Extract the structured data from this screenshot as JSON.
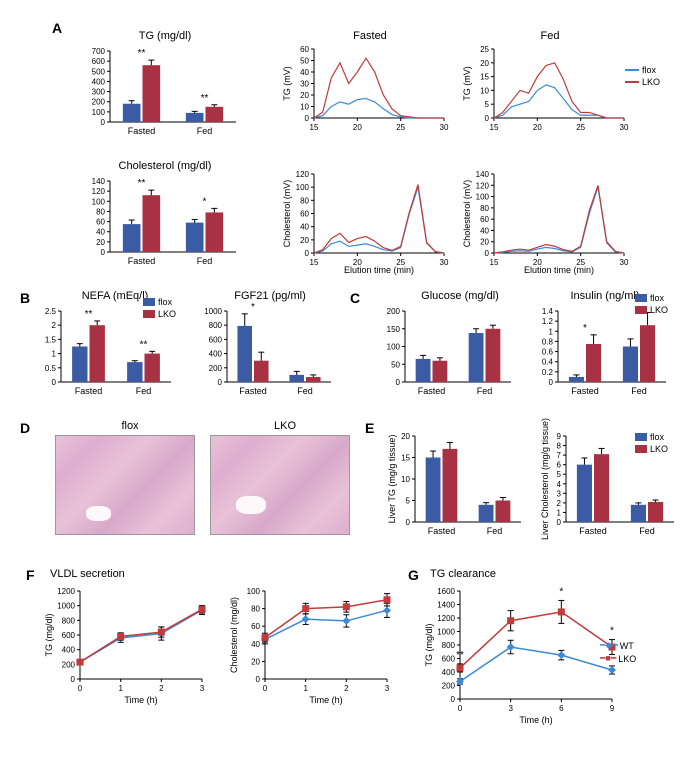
{
  "colors": {
    "flox": "#3b5ba5",
    "lko": "#a83244",
    "flox_line": "#3b8bd6",
    "lko_line": "#c23a3a",
    "wt_line": "#3b8bd6",
    "axis": "#000000",
    "bg": "#ffffff"
  },
  "legend": {
    "flox": "flox",
    "lko": "LKO",
    "wt": "WT"
  },
  "panels": {
    "A": {
      "label": "A",
      "tg_bar": {
        "title": "TG (mg/dl)",
        "categories": [
          "Fasted",
          "Fed"
        ],
        "flox": [
          180,
          90
        ],
        "lko": [
          560,
          150
        ],
        "flox_err": [
          30,
          15
        ],
        "lko_err": [
          50,
          20
        ],
        "ylim": [
          0,
          700
        ],
        "ytick": 100,
        "sig": [
          "**",
          "**"
        ]
      },
      "chol_bar": {
        "title": "Cholesterol (mg/dl)",
        "categories": [
          "Fasted",
          "Fed"
        ],
        "flox": [
          55,
          58
        ],
        "lko": [
          112,
          78
        ],
        "flox_err": [
          8,
          6
        ],
        "lko_err": [
          10,
          8
        ],
        "ylim": [
          0,
          140
        ],
        "ytick": 20,
        "sig": [
          "**",
          "*"
        ]
      },
      "tg_fasted_line": {
        "title": "Fasted",
        "ylabel": "TG (mV)",
        "xlim": [
          15,
          30
        ],
        "xticks": [
          15,
          20,
          25,
          30
        ],
        "ylim": [
          0,
          60
        ],
        "yticks": [
          0,
          10,
          20,
          30,
          40,
          50,
          60
        ],
        "flox": [
          [
            15,
            0
          ],
          [
            16,
            2
          ],
          [
            17,
            10
          ],
          [
            18,
            14
          ],
          [
            19,
            12
          ],
          [
            20,
            16
          ],
          [
            21,
            17
          ],
          [
            22,
            14
          ],
          [
            23,
            8
          ],
          [
            24,
            3
          ],
          [
            25,
            1
          ],
          [
            26,
            0
          ],
          [
            27,
            0
          ],
          [
            28,
            0
          ],
          [
            29,
            0
          ],
          [
            30,
            0
          ]
        ],
        "lko": [
          [
            15,
            0
          ],
          [
            16,
            5
          ],
          [
            17,
            35
          ],
          [
            18,
            48
          ],
          [
            19,
            30
          ],
          [
            20,
            40
          ],
          [
            21,
            52
          ],
          [
            22,
            40
          ],
          [
            23,
            20
          ],
          [
            24,
            8
          ],
          [
            25,
            2
          ],
          [
            26,
            1
          ],
          [
            27,
            0
          ],
          [
            28,
            0
          ],
          [
            29,
            0
          ],
          [
            30,
            0
          ]
        ]
      },
      "tg_fed_line": {
        "title": "Fed",
        "ylabel": "TG (mV)",
        "xlim": [
          15,
          30
        ],
        "xticks": [
          15,
          20,
          25,
          30
        ],
        "ylim": [
          0,
          25
        ],
        "yticks": [
          0,
          5,
          10,
          15,
          20,
          25
        ],
        "flox": [
          [
            15,
            0
          ],
          [
            16,
            1
          ],
          [
            17,
            4
          ],
          [
            18,
            5
          ],
          [
            19,
            6
          ],
          [
            20,
            10
          ],
          [
            21,
            12
          ],
          [
            22,
            11
          ],
          [
            23,
            7
          ],
          [
            24,
            3
          ],
          [
            25,
            1
          ],
          [
            26,
            1
          ],
          [
            27,
            1
          ],
          [
            28,
            0
          ],
          [
            29,
            0
          ],
          [
            30,
            0
          ]
        ],
        "lko": [
          [
            15,
            0
          ],
          [
            16,
            2
          ],
          [
            17,
            6
          ],
          [
            18,
            10
          ],
          [
            19,
            9
          ],
          [
            20,
            15
          ],
          [
            21,
            19
          ],
          [
            22,
            20
          ],
          [
            23,
            14
          ],
          [
            24,
            6
          ],
          [
            25,
            2
          ],
          [
            26,
            2
          ],
          [
            27,
            1
          ],
          [
            28,
            0
          ],
          [
            29,
            0
          ],
          [
            30,
            0
          ]
        ]
      },
      "chol_fasted_line": {
        "ylabel": "Cholesterol (mV)",
        "xlabel": "Elution time (min)",
        "xlim": [
          15,
          30
        ],
        "xticks": [
          15,
          20,
          25,
          30
        ],
        "ylim": [
          0,
          120
        ],
        "yticks": [
          0,
          20,
          40,
          60,
          80,
          100,
          120
        ],
        "flox": [
          [
            15,
            0
          ],
          [
            16,
            3
          ],
          [
            17,
            14
          ],
          [
            18,
            18
          ],
          [
            19,
            10
          ],
          [
            20,
            12
          ],
          [
            21,
            14
          ],
          [
            22,
            10
          ],
          [
            23,
            5
          ],
          [
            24,
            3
          ],
          [
            25,
            8
          ],
          [
            26,
            60
          ],
          [
            27,
            100
          ],
          [
            28,
            15
          ],
          [
            29,
            2
          ],
          [
            30,
            0
          ]
        ],
        "lko": [
          [
            15,
            0
          ],
          [
            16,
            5
          ],
          [
            17,
            22
          ],
          [
            18,
            30
          ],
          [
            19,
            16
          ],
          [
            20,
            22
          ],
          [
            21,
            25
          ],
          [
            22,
            18
          ],
          [
            23,
            8
          ],
          [
            24,
            4
          ],
          [
            25,
            10
          ],
          [
            26,
            62
          ],
          [
            27,
            104
          ],
          [
            28,
            16
          ],
          [
            29,
            2
          ],
          [
            30,
            0
          ]
        ]
      },
      "chol_fed_line": {
        "ylabel": "Cholesterol (mV)",
        "xlabel": "Elution time (min)",
        "xlim": [
          15,
          30
        ],
        "xticks": [
          15,
          20,
          25,
          30
        ],
        "ylim": [
          0,
          140
        ],
        "yticks": [
          0,
          20,
          40,
          60,
          80,
          100,
          120,
          140
        ],
        "flox": [
          [
            15,
            0
          ],
          [
            16,
            1
          ],
          [
            17,
            3
          ],
          [
            18,
            4
          ],
          [
            19,
            3
          ],
          [
            20,
            7
          ],
          [
            21,
            10
          ],
          [
            22,
            8
          ],
          [
            23,
            4
          ],
          [
            24,
            2
          ],
          [
            25,
            10
          ],
          [
            26,
            70
          ],
          [
            27,
            117
          ],
          [
            28,
            18
          ],
          [
            29,
            2
          ],
          [
            30,
            0
          ]
        ],
        "lko": [
          [
            15,
            0
          ],
          [
            16,
            2
          ],
          [
            17,
            5
          ],
          [
            18,
            7
          ],
          [
            19,
            5
          ],
          [
            20,
            10
          ],
          [
            21,
            15
          ],
          [
            22,
            12
          ],
          [
            23,
            6
          ],
          [
            24,
            3
          ],
          [
            25,
            12
          ],
          [
            26,
            75
          ],
          [
            27,
            120
          ],
          [
            28,
            20
          ],
          [
            29,
            3
          ],
          [
            30,
            0
          ]
        ]
      }
    },
    "B": {
      "label": "B",
      "nefa": {
        "title": "NEFA (mEq/l)",
        "categories": [
          "Fasted",
          "Fed"
        ],
        "flox": [
          1.25,
          0.7
        ],
        "lko": [
          2.0,
          1.0
        ],
        "flox_err": [
          0.1,
          0.05
        ],
        "lko_err": [
          0.15,
          0.08
        ],
        "ylim": [
          0,
          2.5
        ],
        "ytick": 0.5,
        "sig": [
          "**",
          "**"
        ]
      },
      "fgf21": {
        "title": "FGF21 (pg/ml)",
        "categories": [
          "Fasted",
          "Fed"
        ],
        "flox": [
          790,
          100
        ],
        "lko": [
          300,
          70
        ],
        "flox_err": [
          170,
          50
        ],
        "lko_err": [
          120,
          30
        ],
        "ylim": [
          0,
          1000
        ],
        "ytick": 200,
        "sig": [
          "*",
          ""
        ]
      }
    },
    "C": {
      "label": "C",
      "glucose": {
        "title": "Glucose (mg/dl)",
        "categories": [
          "Fasted",
          "Fed"
        ],
        "flox": [
          65,
          138
        ],
        "lko": [
          60,
          150
        ],
        "flox_err": [
          10,
          12
        ],
        "lko_err": [
          8,
          10
        ],
        "ylim": [
          0,
          200
        ],
        "ytick": 50,
        "sig": [
          "",
          ""
        ]
      },
      "insulin": {
        "title": "Insulin (ng/ml)",
        "categories": [
          "Fasted",
          "Fed"
        ],
        "flox": [
          0.1,
          0.7
        ],
        "lko": [
          0.75,
          1.12
        ],
        "flox_err": [
          0.04,
          0.15
        ],
        "lko_err": [
          0.18,
          0.25
        ],
        "ylim": [
          0,
          1.4
        ],
        "ytick": 0.2,
        "sig": [
          "*",
          ""
        ]
      }
    },
    "D": {
      "label": "D",
      "flox_label": "flox",
      "lko_label": "LKO"
    },
    "E": {
      "label": "E",
      "liver_tg": {
        "ylabel": "Liver TG (mg/g tissue)",
        "categories": [
          "Fasted",
          "Fed"
        ],
        "flox": [
          15,
          4
        ],
        "lko": [
          17,
          5
        ],
        "flox_err": [
          1.5,
          0.5
        ],
        "lko_err": [
          1.5,
          0.7
        ],
        "ylim": [
          0,
          20
        ],
        "ytick": 5,
        "sig": [
          "",
          ""
        ]
      },
      "liver_chol": {
        "ylabel": "Liver Cholesterol (mg/g tissue)",
        "categories": [
          "Fasted",
          "Fed"
        ],
        "flox": [
          6,
          1.8
        ],
        "lko": [
          7.1,
          2.1
        ],
        "flox_err": [
          0.7,
          0.2
        ],
        "lko_err": [
          0.6,
          0.2
        ],
        "ylim": [
          0,
          9
        ],
        "ytick": 1,
        "sig": [
          "",
          ""
        ]
      }
    },
    "F": {
      "label": "F",
      "title": "VLDL secretion",
      "tg": {
        "ylabel": "TG (mg/dl)",
        "xlabel": "Time (h)",
        "x": [
          0,
          1,
          2,
          3
        ],
        "ylim": [
          0,
          1200
        ],
        "ytick": 200,
        "flox": [
          230,
          560,
          620,
          940
        ],
        "lko": [
          230,
          580,
          640,
          950
        ],
        "flox_err": [
          20,
          60,
          90,
          60
        ],
        "lko_err": [
          20,
          50,
          70,
          50
        ]
      },
      "chol": {
        "ylabel": "Cholesterol (mg/dl)",
        "xlabel": "Time (h)",
        "x": [
          0,
          1,
          2,
          3
        ],
        "ylim": [
          0,
          100
        ],
        "ytick": 20,
        "flox": [
          45,
          68,
          66,
          78
        ],
        "lko": [
          47,
          80,
          82,
          90
        ],
        "flox_err": [
          5,
          6,
          7,
          8
        ],
        "lko_err": [
          5,
          6,
          6,
          7
        ]
      }
    },
    "G": {
      "label": "G",
      "title": "TG clearance",
      "tg": {
        "ylabel": "TG (mg/dl)",
        "xlabel": "Time (h)",
        "x": [
          0,
          3,
          6,
          9
        ],
        "ylim": [
          0,
          1600
        ],
        "ytick": 200,
        "wt": [
          260,
          770,
          650,
          430
        ],
        "lko": [
          460,
          1160,
          1290,
          770
        ],
        "wt_err": [
          40,
          100,
          70,
          60
        ],
        "lko_err": [
          60,
          150,
          170,
          110
        ],
        "sig": [
          "**",
          "",
          "*",
          "*"
        ]
      }
    }
  }
}
